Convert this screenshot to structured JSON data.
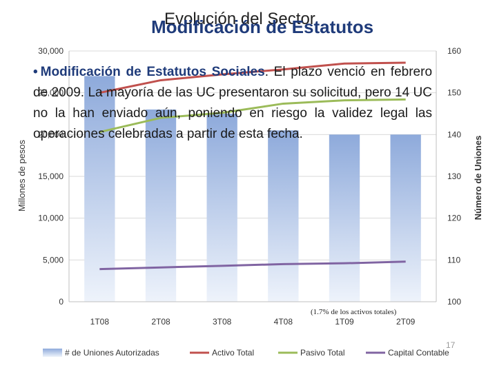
{
  "slide": {
    "title_back": "Evolución del Sector",
    "title_front": "Modificación de Estatutos",
    "bullet_lead": "Modificación de Estatutos Sociales",
    "bullet_rest": ". El plazo venció en febrero de 2009. La mayoría de las UC presentaron su solicitud, pero 14 UC no la han enviado aún, poniendo en riesgo la validez legal las operaciones celebradas a partir de esta fecha.",
    "annotation": "(1.7% de los activos totales)",
    "page_number": "17"
  },
  "chart_data": {
    "type": "bar",
    "categories": [
      "1T08",
      "2T08",
      "3T08",
      "4T08",
      "1T09",
      "2T09"
    ],
    "ylabel": "Millones de pesos",
    "y2label": "Número de Uniones",
    "ylim": [
      0,
      30000
    ],
    "y2lim": [
      100,
      160
    ],
    "yticks": [
      "0",
      "5,000",
      "10,000",
      "15,000",
      "20,000",
      "25,000",
      "30,000"
    ],
    "y2ticks": [
      "100",
      "110",
      "120",
      "130",
      "140",
      "150",
      "160"
    ],
    "bar_series": {
      "name": "# de Uniones Autorizadas",
      "axis": "secondary",
      "values": [
        154,
        146,
        145,
        141,
        140,
        140
      ],
      "color": "#8EAADB"
    },
    "line_series": [
      {
        "name": "Activo Total",
        "axis": "primary",
        "values": [
          25000,
          26500,
          27200,
          27800,
          28500,
          28600
        ],
        "color": "#C0504D"
      },
      {
        "name": "Pasivo Total",
        "axis": "primary",
        "values": [
          20300,
          22000,
          22600,
          23700,
          24100,
          24200
        ],
        "color": "#9BBB59"
      },
      {
        "name": "Capital Contable",
        "axis": "primary",
        "values": [
          3900,
          4100,
          4300,
          4500,
          4600,
          4800
        ],
        "color": "#8064A2"
      }
    ],
    "legend_position": "bottom",
    "grid": true
  }
}
